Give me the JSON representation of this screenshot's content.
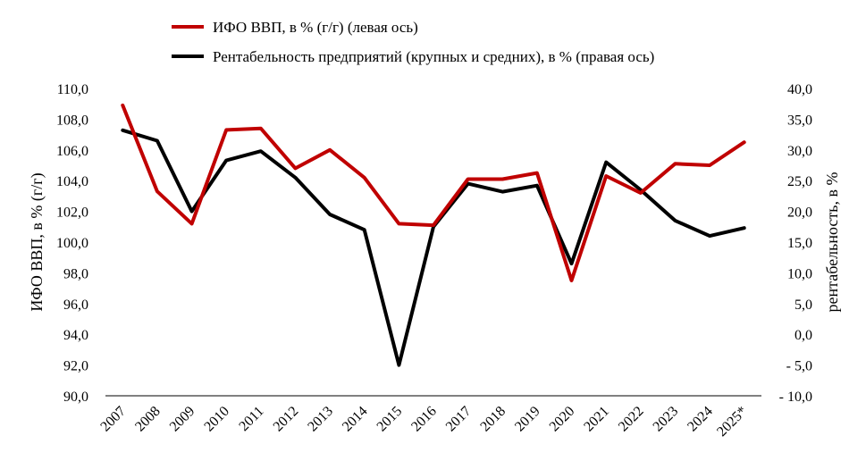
{
  "chart_data": {
    "type": "line",
    "categories": [
      "2007",
      "2008",
      "2009",
      "2010",
      "2011",
      "2012",
      "2013",
      "2014",
      "2015",
      "2016",
      "2017",
      "2018",
      "2019",
      "2020",
      "2021",
      "2022",
      "2023",
      "2024",
      "2025*"
    ],
    "series": [
      {
        "name": "ИФО ВВП, в % (г/г) (левая ось)",
        "axis": "left",
        "color": "#C00000",
        "values": [
          108.9,
          103.3,
          101.2,
          107.3,
          107.4,
          104.8,
          106.0,
          104.2,
          101.2,
          101.1,
          104.1,
          104.1,
          104.5,
          97.5,
          104.3,
          103.2,
          105.1,
          105.0,
          106.5
        ]
      },
      {
        "name": "Рентабельность предприятий (крупных и средних), в % (правая ось)",
        "axis": "right",
        "color": "#000000",
        "values": [
          33.2,
          31.5,
          20.0,
          28.3,
          29.8,
          25.5,
          19.5,
          17.0,
          -5.0,
          17.5,
          24.5,
          23.2,
          24.2,
          11.5,
          28.0,
          23.5,
          18.5,
          16.0,
          17.3
        ]
      }
    ],
    "left_axis": {
      "label": "ИФО ВВП, в % (г/г)",
      "ylim": [
        90,
        110
      ],
      "ticks": [
        "110,0",
        "108,0",
        "106,0",
        "104,0",
        "102,0",
        "100,0",
        "98,0",
        "96,0",
        "94,0",
        "92,0",
        "90,0"
      ]
    },
    "right_axis": {
      "label": "рентабельность, в %",
      "ylim": [
        -10,
        40
      ],
      "ticks": [
        "40,0",
        "35,0",
        "30,0",
        "25,0",
        "20,0",
        "15,0",
        "10,0",
        "5,0",
        "0,0",
        "- 5,0",
        "- 10,0"
      ]
    },
    "grid": false,
    "legend_position": "top"
  }
}
